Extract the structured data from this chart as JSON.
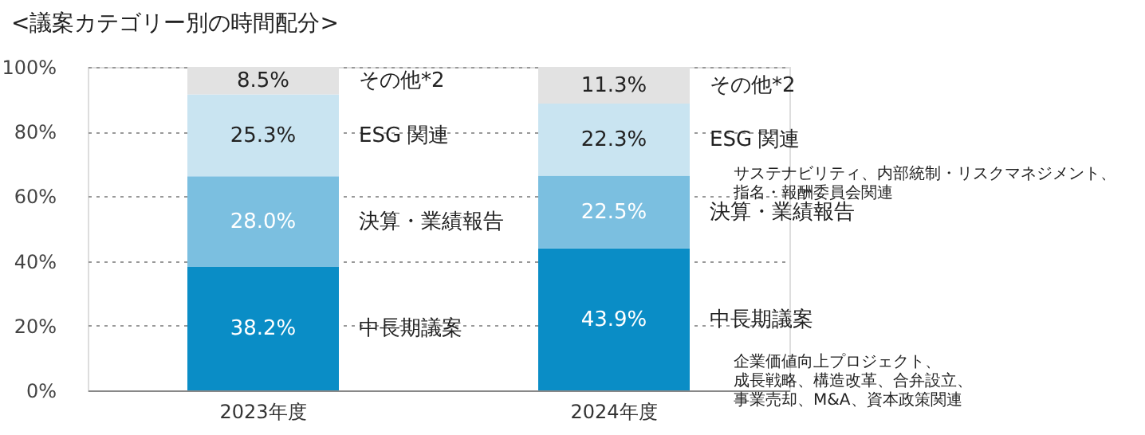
{
  "chart_data": {
    "type": "bar",
    "title": "<議案カテゴリー別の時間配分>",
    "categories": [
      "2023年度",
      "2024年度"
    ],
    "stacked": true,
    "legend": false,
    "grid": "y",
    "ylim": [
      0,
      100
    ],
    "yticks": [
      {
        "value": 0,
        "label": "0%"
      },
      {
        "value": 20,
        "label": "20%"
      },
      {
        "value": 40,
        "label": "40%"
      },
      {
        "value": 60,
        "label": "60%"
      },
      {
        "value": 80,
        "label": "80%"
      },
      {
        "value": 100,
        "label": "100%"
      }
    ],
    "series": [
      {
        "name": "中長期議案",
        "color": "#0a8dc6",
        "values": [
          38.2,
          43.9
        ],
        "value_labels": [
          "38.2%",
          "43.9%"
        ]
      },
      {
        "name": "決算・業績報告",
        "color": "#7bbfe0",
        "values": [
          28.0,
          22.5
        ],
        "value_labels": [
          "28.0%",
          "22.5%"
        ]
      },
      {
        "name": "ESG 関連",
        "color": "#c9e4f1",
        "values": [
          25.3,
          22.3
        ],
        "value_labels": [
          "25.3%",
          "22.3%"
        ]
      },
      {
        "name": "その他*2",
        "color": "#e2e2e2",
        "values": [
          8.5,
          11.3
        ],
        "value_labels": [
          "8.5%",
          "11.3%"
        ]
      }
    ],
    "annotations": [
      "サステナビリティ、内部統制・リスクマネジメント、指名・報酬委員会関連",
      "企業価値向上プロジェクト、成長戦略、構造改革、合弁設立、事業売却、M&A、資本政策関連"
    ]
  }
}
